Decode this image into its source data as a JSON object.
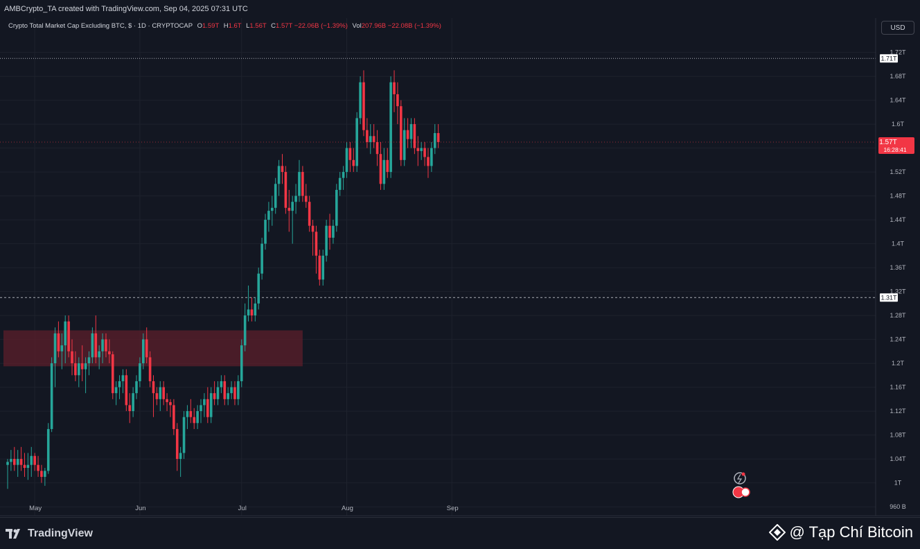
{
  "header": {
    "publish_line": "AMBCrypto_TA created with TradingView.com, Sep 04, 2025 07:31 UTC"
  },
  "legend": {
    "symbol": "Crypto Total Market Cap Excluding BTC, $ · 1D · CRYPTOCAP",
    "o_label": "O",
    "o": "1.59T",
    "h_label": "H",
    "h": "1.6T",
    "l_label": "L",
    "l": "1.56T",
    "c_label": "C",
    "c": "1.57T",
    "change": "−22.06B (−1.39%)",
    "vol_label": "Vol",
    "vol": "207.96B",
    "vol_change": "−22.08B (−1.39%)"
  },
  "currency": "USD",
  "footer": {
    "brand": "TradingView",
    "watermark": "@ Tạp Chí Bitcoin"
  },
  "colors": {
    "background": "#131722",
    "up": "#26a69a",
    "down": "#f23645",
    "grid": "#1e222d",
    "zone": "#5c1f2b"
  },
  "chart_data": {
    "type": "candlestick",
    "y_unit": "USD (T = trillion)",
    "ylim": [
      0.945,
      1.745
    ],
    "y_ticks": [
      {
        "v": 0.96,
        "label": "960 B"
      },
      {
        "v": 1.0,
        "label": "1T"
      },
      {
        "v": 1.04,
        "label": "1.04T"
      },
      {
        "v": 1.08,
        "label": "1.08T"
      },
      {
        "v": 1.12,
        "label": "1.12T"
      },
      {
        "v": 1.16,
        "label": "1.16T"
      },
      {
        "v": 1.2,
        "label": "1.2T"
      },
      {
        "v": 1.24,
        "label": "1.24T"
      },
      {
        "v": 1.28,
        "label": "1.28T"
      },
      {
        "v": 1.32,
        "label": "1.32T"
      },
      {
        "v": 1.36,
        "label": "1.36T"
      },
      {
        "v": 1.4,
        "label": "1.4T"
      },
      {
        "v": 1.44,
        "label": "1.44T"
      },
      {
        "v": 1.48,
        "label": "1.48T"
      },
      {
        "v": 1.52,
        "label": "1.52T"
      },
      {
        "v": 1.56,
        "label": "1.56T"
      },
      {
        "v": 1.6,
        "label": "1.6T"
      },
      {
        "v": 1.64,
        "label": "1.64T"
      },
      {
        "v": 1.68,
        "label": "1.68T"
      },
      {
        "v": 1.72,
        "label": "1.72T"
      }
    ],
    "x_first_date": "2025-04-23",
    "x_labels": [
      {
        "date": "2025-05-01",
        "label": "May"
      },
      {
        "date": "2025-06-01",
        "label": "Jun"
      },
      {
        "date": "2025-07-01",
        "label": "Jul"
      },
      {
        "date": "2025-08-01",
        "label": "Aug"
      },
      {
        "date": "2025-09-01",
        "label": "Sep"
      }
    ],
    "levels": [
      {
        "value": 1.71,
        "label": "1.71T",
        "style": "dotted"
      },
      {
        "value": 1.31,
        "label": "1.31T",
        "style": "dashed"
      }
    ],
    "last_price": {
      "value": 1.57,
      "label": "1.57T",
      "countdown": "16:28:41"
    },
    "zone": {
      "from": "2025-04-23",
      "to": "2025-07-19",
      "low": 1.195,
      "high": 1.255
    },
    "candles": [
      [
        1.03,
        1.04,
        0.99,
        1.035
      ],
      [
        1.035,
        1.055,
        1.02,
        1.04
      ],
      [
        1.04,
        1.06,
        1.02,
        1.03
      ],
      [
        1.03,
        1.055,
        1.01,
        1.04
      ],
      [
        1.04,
        1.06,
        1.02,
        1.03
      ],
      [
        1.03,
        1.05,
        1.01,
        1.025
      ],
      [
        1.025,
        1.05,
        1.005,
        1.03
      ],
      [
        1.03,
        1.06,
        1.01,
        1.045
      ],
      [
        1.045,
        1.05,
        1.02,
        1.03
      ],
      [
        1.03,
        1.045,
        1.01,
        1.02
      ],
      [
        1.02,
        1.03,
        1.0,
        1.01
      ],
      [
        1.01,
        1.025,
        0.995,
        1.02
      ],
      [
        1.02,
        1.1,
        1.015,
        1.09
      ],
      [
        1.09,
        1.21,
        1.085,
        1.2
      ],
      [
        1.2,
        1.26,
        1.16,
        1.25
      ],
      [
        1.25,
        1.27,
        1.21,
        1.22
      ],
      [
        1.22,
        1.25,
        1.19,
        1.23
      ],
      [
        1.23,
        1.28,
        1.2,
        1.27
      ],
      [
        1.27,
        1.28,
        1.21,
        1.22
      ],
      [
        1.22,
        1.24,
        1.18,
        1.2
      ],
      [
        1.2,
        1.22,
        1.17,
        1.18
      ],
      [
        1.18,
        1.21,
        1.16,
        1.2
      ],
      [
        1.2,
        1.23,
        1.17,
        1.19
      ],
      [
        1.19,
        1.21,
        1.15,
        1.2
      ],
      [
        1.2,
        1.22,
        1.18,
        1.21
      ],
      [
        1.21,
        1.26,
        1.2,
        1.25
      ],
      [
        1.25,
        1.28,
        1.2,
        1.21
      ],
      [
        1.21,
        1.23,
        1.19,
        1.22
      ],
      [
        1.22,
        1.25,
        1.2,
        1.24
      ],
      [
        1.24,
        1.25,
        1.21,
        1.22
      ],
      [
        1.22,
        1.24,
        1.2,
        1.215
      ],
      [
        1.215,
        1.22,
        1.14,
        1.15
      ],
      [
        1.15,
        1.17,
        1.13,
        1.16
      ],
      [
        1.16,
        1.18,
        1.14,
        1.17
      ],
      [
        1.17,
        1.19,
        1.15,
        1.18
      ],
      [
        1.18,
        1.19,
        1.12,
        1.13
      ],
      [
        1.13,
        1.15,
        1.1,
        1.12
      ],
      [
        1.12,
        1.16,
        1.11,
        1.15
      ],
      [
        1.15,
        1.18,
        1.14,
        1.17
      ],
      [
        1.17,
        1.21,
        1.16,
        1.2
      ],
      [
        1.2,
        1.25,
        1.19,
        1.24
      ],
      [
        1.24,
        1.26,
        1.2,
        1.21
      ],
      [
        1.21,
        1.22,
        1.16,
        1.17
      ],
      [
        1.17,
        1.18,
        1.11,
        1.15
      ],
      [
        1.15,
        1.16,
        1.13,
        1.14
      ],
      [
        1.14,
        1.17,
        1.12,
        1.16
      ],
      [
        1.16,
        1.17,
        1.13,
        1.14
      ],
      [
        1.14,
        1.15,
        1.12,
        1.135
      ],
      [
        1.135,
        1.14,
        1.11,
        1.13
      ],
      [
        1.13,
        1.14,
        1.08,
        1.09
      ],
      [
        1.09,
        1.1,
        1.02,
        1.04
      ],
      [
        1.04,
        1.06,
        1.01,
        1.05
      ],
      [
        1.05,
        1.12,
        1.04,
        1.11
      ],
      [
        1.11,
        1.13,
        1.09,
        1.12
      ],
      [
        1.12,
        1.14,
        1.1,
        1.11
      ],
      [
        1.11,
        1.125,
        1.09,
        1.1
      ],
      [
        1.1,
        1.13,
        1.09,
        1.12
      ],
      [
        1.12,
        1.14,
        1.1,
        1.13
      ],
      [
        1.13,
        1.15,
        1.11,
        1.14
      ],
      [
        1.14,
        1.16,
        1.1,
        1.11
      ],
      [
        1.11,
        1.16,
        1.1,
        1.15
      ],
      [
        1.15,
        1.17,
        1.13,
        1.14
      ],
      [
        1.14,
        1.17,
        1.13,
        1.16
      ],
      [
        1.16,
        1.18,
        1.15,
        1.17
      ],
      [
        1.17,
        1.18,
        1.13,
        1.14
      ],
      [
        1.14,
        1.16,
        1.13,
        1.15
      ],
      [
        1.15,
        1.17,
        1.14,
        1.16
      ],
      [
        1.16,
        1.17,
        1.13,
        1.14
      ],
      [
        1.14,
        1.18,
        1.13,
        1.17
      ],
      [
        1.17,
        1.24,
        1.16,
        1.23
      ],
      [
        1.23,
        1.3,
        1.22,
        1.28
      ],
      [
        1.28,
        1.33,
        1.27,
        1.29
      ],
      [
        1.29,
        1.31,
        1.27,
        1.28
      ],
      [
        1.28,
        1.31,
        1.27,
        1.3
      ],
      [
        1.3,
        1.36,
        1.29,
        1.35
      ],
      [
        1.35,
        1.41,
        1.34,
        1.4
      ],
      [
        1.4,
        1.45,
        1.39,
        1.44
      ],
      [
        1.44,
        1.47,
        1.42,
        1.455
      ],
      [
        1.455,
        1.48,
        1.43,
        1.46
      ],
      [
        1.46,
        1.51,
        1.45,
        1.5
      ],
      [
        1.5,
        1.54,
        1.48,
        1.53
      ],
      [
        1.53,
        1.55,
        1.5,
        1.52
      ],
      [
        1.52,
        1.53,
        1.45,
        1.46
      ],
      [
        1.46,
        1.49,
        1.42,
        1.455
      ],
      [
        1.455,
        1.48,
        1.4,
        1.47
      ],
      [
        1.47,
        1.5,
        1.45,
        1.48
      ],
      [
        1.48,
        1.54,
        1.47,
        1.52
      ],
      [
        1.52,
        1.53,
        1.47,
        1.48
      ],
      [
        1.48,
        1.5,
        1.46,
        1.47
      ],
      [
        1.47,
        1.48,
        1.42,
        1.43
      ],
      [
        1.43,
        1.44,
        1.38,
        1.42
      ],
      [
        1.42,
        1.43,
        1.35,
        1.38
      ],
      [
        1.38,
        1.39,
        1.33,
        1.34
      ],
      [
        1.34,
        1.39,
        1.33,
        1.38
      ],
      [
        1.38,
        1.44,
        1.37,
        1.43
      ],
      [
        1.43,
        1.45,
        1.39,
        1.41
      ],
      [
        1.41,
        1.44,
        1.4,
        1.43
      ],
      [
        1.43,
        1.5,
        1.42,
        1.49
      ],
      [
        1.49,
        1.52,
        1.48,
        1.51
      ],
      [
        1.51,
        1.53,
        1.49,
        1.52
      ],
      [
        1.52,
        1.57,
        1.51,
        1.56
      ],
      [
        1.56,
        1.57,
        1.52,
        1.54
      ],
      [
        1.54,
        1.56,
        1.52,
        1.53
      ],
      [
        1.53,
        1.62,
        1.52,
        1.61
      ],
      [
        1.61,
        1.68,
        1.6,
        1.67
      ],
      [
        1.67,
        1.69,
        1.58,
        1.59
      ],
      [
        1.59,
        1.61,
        1.56,
        1.57
      ],
      [
        1.57,
        1.6,
        1.55,
        1.58
      ],
      [
        1.58,
        1.6,
        1.56,
        1.57
      ],
      [
        1.57,
        1.59,
        1.53,
        1.55
      ],
      [
        1.55,
        1.57,
        1.49,
        1.5
      ],
      [
        1.5,
        1.56,
        1.49,
        1.54
      ],
      [
        1.54,
        1.56,
        1.51,
        1.52
      ],
      [
        1.52,
        1.68,
        1.51,
        1.67
      ],
      [
        1.67,
        1.69,
        1.62,
        1.65
      ],
      [
        1.65,
        1.67,
        1.6,
        1.63
      ],
      [
        1.63,
        1.64,
        1.53,
        1.54
      ],
      [
        1.54,
        1.61,
        1.53,
        1.59
      ],
      [
        1.59,
        1.61,
        1.56,
        1.575
      ],
      [
        1.575,
        1.61,
        1.56,
        1.6
      ],
      [
        1.6,
        1.61,
        1.55,
        1.56
      ],
      [
        1.56,
        1.58,
        1.53,
        1.555
      ],
      [
        1.555,
        1.57,
        1.54,
        1.56
      ],
      [
        1.56,
        1.57,
        1.53,
        1.545
      ],
      [
        1.545,
        1.56,
        1.51,
        1.53
      ],
      [
        1.53,
        1.57,
        1.52,
        1.56
      ],
      [
        1.56,
        1.6,
        1.55,
        1.585
      ],
      [
        1.585,
        1.6,
        1.56,
        1.57
      ]
    ]
  }
}
